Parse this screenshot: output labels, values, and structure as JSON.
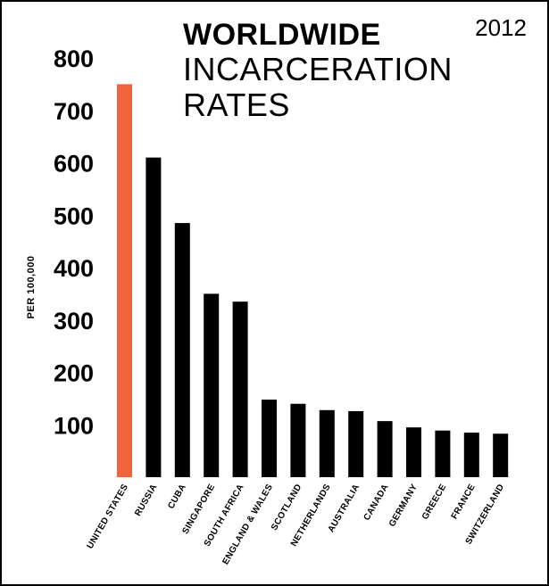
{
  "title_line1": "WORLDWIDE",
  "title_line2": "INCARCERATION",
  "title_line3": "RATES",
  "year": "2012",
  "colors": {
    "highlight": "#f0643c",
    "bar": "#000000",
    "text": "#000000"
  },
  "chart_data": {
    "type": "bar",
    "ylabel": "PER 100,000",
    "ylim": [
      0,
      800
    ],
    "yticks": [
      100,
      200,
      300,
      400,
      500,
      600,
      700,
      800
    ],
    "grid": false,
    "categories": [
      "UNITED STATES",
      "RUSSIA",
      "CUBA",
      "SINGAPORE",
      "SOUTH AFRICA",
      "ENGLAND & WALES",
      "SCOTLAND",
      "NETHERLANDS",
      "AUSTRALIA",
      "CANADA",
      "GERMANY",
      "GREECE",
      "FRANCE",
      "SWITZERLAND"
    ],
    "values": [
      750,
      610,
      485,
      350,
      335,
      148,
      140,
      128,
      126,
      107,
      95,
      89,
      85,
      83
    ],
    "highlight_index": 0
  }
}
